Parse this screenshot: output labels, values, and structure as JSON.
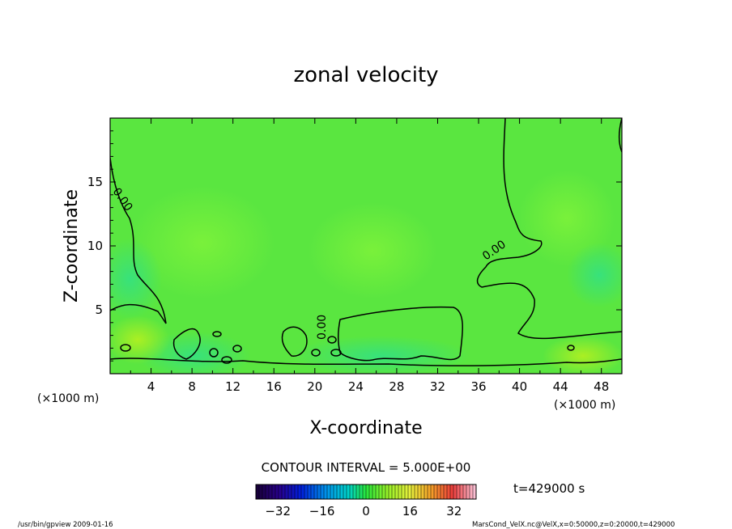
{
  "chart_data": {
    "type": "heatmap",
    "title": "zonal velocity",
    "xlabel": "X-coordinate",
    "ylabel": "Z-coordinate",
    "x_unit": "(×1000 m)",
    "y_unit": "(×1000 m)",
    "xlim": [
      0,
      50
    ],
    "ylim": [
      0,
      20
    ],
    "x_ticks": [
      4,
      8,
      12,
      16,
      20,
      24,
      28,
      32,
      36,
      40,
      44,
      48
    ],
    "y_ticks": [
      5,
      10,
      15
    ],
    "contour_interval": "CONTOUR INTERVAL = 5.000E+00",
    "contour_label": "0.00",
    "time_label": "t=429000 s",
    "colorbar": {
      "range": [
        -40,
        40
      ],
      "ticks": [
        -32,
        -16,
        0,
        16,
        32
      ]
    },
    "footer_left": "/usr/bin/gpview   2009-01-16",
    "footer_right": "MarsCond_VelX.nc@VelX,x=0:50000,z=0:20000,t=429000"
  }
}
